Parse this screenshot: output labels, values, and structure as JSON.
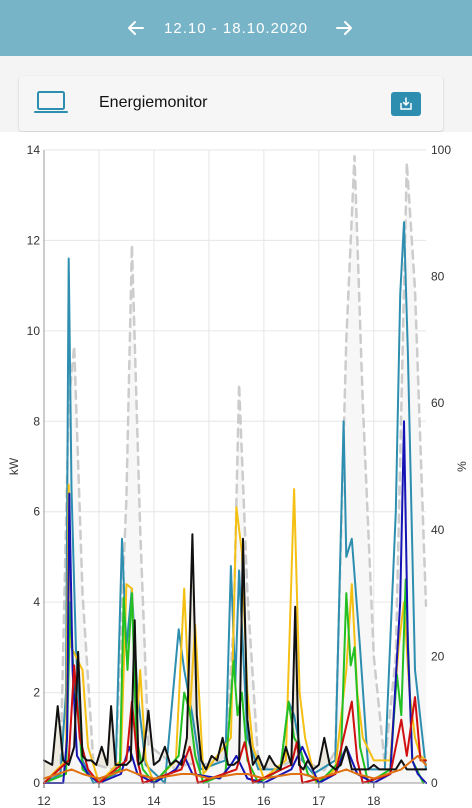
{
  "header": {
    "date_range": "12.10 - 18.10.2020"
  },
  "card": {
    "title": "Energiemonitor",
    "icon": "laptop-icon",
    "action_icon": "download-icon"
  },
  "colors": {
    "header_bg": "#78b4c8",
    "button": "#2e8eb0"
  },
  "chart_data": {
    "type": "line",
    "ylabel": "kW",
    "y2label": "%",
    "ylim": [
      0,
      14
    ],
    "y2lim": [
      0,
      100
    ],
    "yticks": [
      "0",
      "2",
      "4",
      "6",
      "8",
      "10",
      "12",
      "14"
    ],
    "y2ticks": [
      "0",
      "20",
      "40",
      "60",
      "80",
      "100"
    ],
    "xlim": [
      12,
      18.95
    ],
    "xticks": [
      "12",
      "13",
      "14",
      "15",
      "16",
      "17",
      "18"
    ],
    "grid": true,
    "series": [
      {
        "color": "#cccccc",
        "dashed": true,
        "axis": "right",
        "x": [
          12,
          12.3,
          12.45,
          12.55,
          12.7,
          12.9,
          13.3,
          13.5,
          13.6,
          13.75,
          13.9,
          14.2,
          14.4,
          14.6,
          15.1,
          15.3,
          15.45,
          15.55,
          15.7,
          15.9,
          16.2,
          16.6,
          17.1,
          17.3,
          17.5,
          17.65,
          17.8,
          18,
          18.2,
          18.4,
          18.6,
          18.75,
          18.95
        ],
        "y": [
          0,
          2,
          60,
          69,
          30,
          3,
          2,
          45,
          85,
          40,
          6,
          4,
          2,
          3,
          3,
          4,
          25,
          63,
          30,
          3,
          2,
          4,
          2,
          5,
          70,
          99,
          60,
          20,
          3,
          20,
          98,
          78,
          28
        ]
      },
      {
        "color": "#2e8eb0",
        "axis": "left",
        "x": [
          12,
          12.3,
          12.4,
          12.45,
          12.5,
          12.58,
          12.7,
          12.9,
          13.3,
          13.42,
          13.5,
          13.6,
          13.7,
          13.85,
          14.2,
          14.45,
          14.55,
          14.7,
          14.85,
          15.3,
          15.4,
          15.48,
          15.55,
          15.7,
          15.9,
          16.3,
          16.45,
          16.55,
          16.7,
          16.9,
          17.3,
          17.45,
          17.5,
          17.6,
          17.75,
          17.9,
          18.2,
          18.4,
          18.48,
          18.55,
          18.62,
          18.75,
          18.95
        ],
        "y": [
          0,
          0.2,
          2,
          11.6,
          6.5,
          3,
          0.5,
          0,
          0.2,
          5.4,
          3,
          4.3,
          2,
          0.4,
          0,
          3.4,
          2.5,
          1.5,
          0.3,
          0.5,
          4.8,
          2.2,
          4.7,
          1,
          0.3,
          0.3,
          1.8,
          1.5,
          0.5,
          0.2,
          0.5,
          8,
          5,
          5.4,
          3,
          0.3,
          0.3,
          6,
          10.8,
          12.4,
          9.5,
          2.5,
          0.3
        ]
      },
      {
        "color": "#f5c014",
        "axis": "left",
        "x": [
          12,
          12.4,
          12.45,
          12.5,
          12.58,
          12.7,
          12.8,
          13,
          13.4,
          13.5,
          13.6,
          13.68,
          13.75,
          13.85,
          14,
          14.4,
          14.55,
          14.65,
          14.75,
          14.9,
          15.4,
          15.5,
          15.6,
          15.7,
          15.8,
          16,
          16.4,
          16.55,
          16.65,
          16.75,
          16.95,
          17.3,
          17.5,
          17.6,
          17.7,
          17.8,
          18,
          18.3,
          18.45,
          18.55,
          18.65,
          18.75,
          18.85,
          18.95
        ],
        "y": [
          0,
          0.5,
          6.6,
          3,
          2.8,
          2.5,
          0.8,
          0,
          0.5,
          4.4,
          4.3,
          1.2,
          2.5,
          0.5,
          0,
          0.5,
          4.3,
          1.5,
          3.5,
          0.2,
          1,
          6.1,
          5.1,
          2,
          0.8,
          0.1,
          0.5,
          6.5,
          2,
          1,
          0,
          0.3,
          2.5,
          4.4,
          2,
          1,
          0.5,
          0.5,
          3,
          4,
          2,
          1,
          0.6,
          0.5
        ]
      },
      {
        "color": "#22c022",
        "axis": "left",
        "x": [
          12,
          12.4,
          12.48,
          12.55,
          12.62,
          12.7,
          13,
          13.38,
          13.45,
          13.52,
          13.6,
          13.68,
          13.8,
          14,
          14.45,
          14.55,
          14.65,
          14.75,
          14.9,
          15.3,
          15.45,
          15.52,
          15.6,
          15.7,
          15.9,
          16.3,
          16.45,
          16.55,
          16.65,
          16.8,
          17,
          17.4,
          17.5,
          17.58,
          17.65,
          17.75,
          17.9,
          18.3,
          18.42,
          18.5,
          18.58,
          18.7,
          18.9
        ],
        "y": [
          0,
          0.2,
          4,
          2,
          1.6,
          0.3,
          0,
          0.3,
          4.1,
          2.5,
          4.2,
          1,
          0.3,
          0,
          0.6,
          2,
          1.6,
          0.6,
          0,
          0.2,
          2.7,
          1.5,
          2,
          0.5,
          0,
          0.3,
          1.8,
          1,
          0.8,
          0.2,
          0,
          0.5,
          4.2,
          2.6,
          3,
          0.8,
          0,
          0.3,
          2.4,
          1.5,
          4.5,
          0.5,
          0
        ]
      },
      {
        "color": "#1414b4",
        "axis": "left",
        "x": [
          12,
          12.35,
          12.42,
          12.46,
          12.52,
          12.6,
          12.8,
          13,
          13.4,
          13.55,
          13.7,
          14,
          14.4,
          14.55,
          14.7,
          15.2,
          15.4,
          15.5,
          15.7,
          16,
          16.5,
          16.7,
          17,
          17.3,
          17.5,
          17.7,
          18,
          18.3,
          18.48,
          18.55,
          18.62,
          18.7,
          18.8,
          18.95
        ],
        "y": [
          0,
          0,
          1,
          6.4,
          2.5,
          0.6,
          0.2,
          0,
          0.2,
          0.8,
          0.2,
          0,
          0.3,
          0.6,
          0.2,
          0.1,
          0.4,
          0.6,
          0.1,
          0,
          0.3,
          0.8,
          0,
          0.2,
          0.8,
          0.2,
          0,
          0.2,
          4,
          8,
          3,
          0.5,
          0.2,
          0
        ]
      },
      {
        "color": "#d01010",
        "axis": "left",
        "x": [
          12,
          12.45,
          12.55,
          12.65,
          12.8,
          13,
          13.5,
          13.6,
          13.7,
          13.8,
          14.5,
          14.65,
          14.8,
          15.5,
          15.65,
          15.8,
          16.5,
          16.6,
          16.7,
          17.3,
          17.6,
          17.7,
          17.8,
          18.3,
          18.5,
          18.6,
          18.75,
          18.85,
          18.95
        ],
        "y": [
          0,
          0.5,
          2.6,
          1,
          0.3,
          0,
          0.5,
          1.8,
          0.5,
          0,
          0.3,
          0.8,
          0,
          0.3,
          0.9,
          0,
          0.4,
          0.9,
          0,
          0.2,
          1.8,
          0.5,
          0,
          0.2,
          1.4,
          0.6,
          1.9,
          0.5,
          0.5
        ]
      },
      {
        "color": "#111111",
        "axis": "left",
        "x": [
          12,
          12.15,
          12.25,
          12.35,
          12.45,
          12.55,
          12.62,
          12.7,
          12.78,
          12.86,
          12.95,
          13.05,
          13.15,
          13.22,
          13.3,
          13.4,
          13.5,
          13.58,
          13.65,
          13.72,
          13.8,
          13.9,
          14,
          14.1,
          14.2,
          14.3,
          14.4,
          14.5,
          14.6,
          14.7,
          14.78,
          14.86,
          14.95,
          15.05,
          15.15,
          15.25,
          15.35,
          15.45,
          15.55,
          15.62,
          15.7,
          15.8,
          15.9,
          16,
          16.1,
          16.2,
          16.3,
          16.4,
          16.5,
          16.57,
          16.64,
          16.72,
          16.8,
          16.9,
          17,
          17.1,
          17.2,
          17.3,
          17.4,
          17.5,
          17.6,
          17.7,
          17.8,
          17.9,
          18,
          18.1,
          18.2,
          18.3,
          18.4,
          18.5,
          18.6,
          18.7,
          18.8,
          18.95
        ],
        "y": [
          0.5,
          0.4,
          1.7,
          0.5,
          0.4,
          0.8,
          2.9,
          0.6,
          0.5,
          0.5,
          0.4,
          0.8,
          0.4,
          1.7,
          0.4,
          0.4,
          0.4,
          0.5,
          3.6,
          0.4,
          0.5,
          1.6,
          0.4,
          0.5,
          0.8,
          0.4,
          0.5,
          0.4,
          1,
          5.5,
          1.5,
          0.5,
          0.3,
          0.6,
          0.5,
          1,
          0.4,
          0.4,
          0.5,
          5.4,
          1.4,
          0.4,
          0.6,
          0.3,
          0.6,
          0.4,
          0.3,
          0.8,
          0.4,
          3.9,
          0.4,
          0.3,
          0.5,
          0.3,
          0.4,
          1,
          0.4,
          0.3,
          0.4,
          0.8,
          0.3,
          0.3,
          0.3,
          0.3,
          0.4,
          0.3,
          0.3,
          0.3,
          0.3,
          0.5,
          0.3,
          0.3,
          0.3,
          0.3
        ]
      },
      {
        "color": "#e07010",
        "axis": "left",
        "x": [
          12,
          12.5,
          12.7,
          13,
          13.5,
          13.7,
          14,
          14.5,
          14.7,
          15,
          15.5,
          15.7,
          16,
          16.5,
          16.7,
          17,
          17.5,
          17.7,
          18,
          18.5,
          18.7,
          18.8,
          18.95
        ],
        "y": [
          0.1,
          0.3,
          0.2,
          0.1,
          0.3,
          0.2,
          0.1,
          0.2,
          0.2,
          0.1,
          0.2,
          0.2,
          0.1,
          0.2,
          0.2,
          0.1,
          0.3,
          0.2,
          0.1,
          0.3,
          0.5,
          0.6,
          0.4
        ]
      }
    ]
  }
}
